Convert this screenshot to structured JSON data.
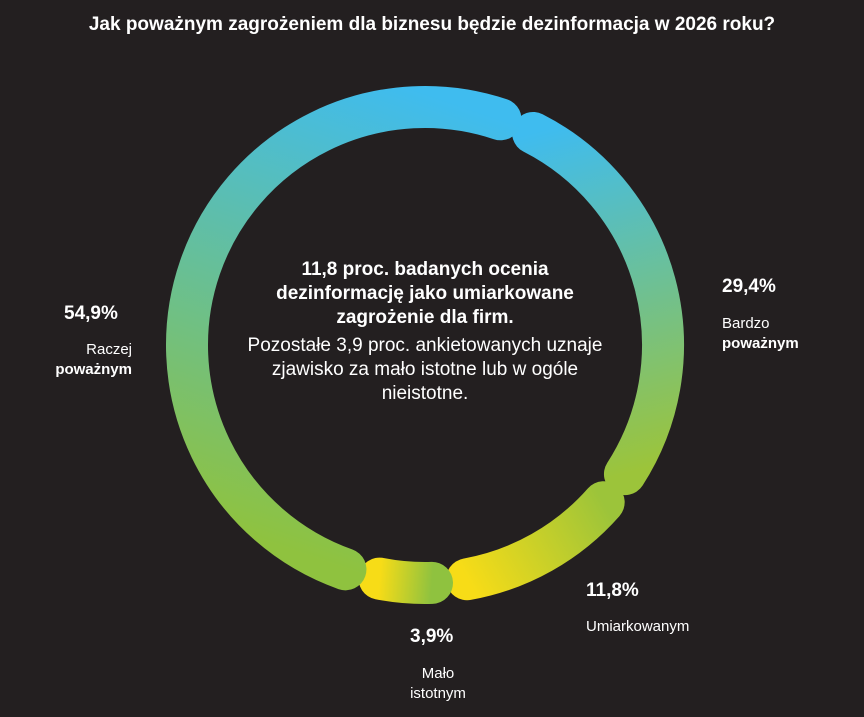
{
  "chart_data": {
    "type": "pie",
    "title": "Jak poważnym zagrożeniem dla biznesu będzie dezinformacja w 2026 roku?",
    "slices": [
      {
        "label_line1": "Bardzo",
        "label_line2": "poważnym",
        "value": 29.4,
        "value_label": "29,4%",
        "colors": [
          "#3fbcef",
          "#9cc43a"
        ]
      },
      {
        "label_line1": "Umiarkowanym",
        "label_line2": "",
        "value": 11.8,
        "value_label": "11,8%",
        "colors": [
          "#9cc43a",
          "#f7dc17"
        ]
      },
      {
        "label_line1": "Mało",
        "label_line2": "istotnym",
        "value": 3.9,
        "value_label": "3,9%",
        "colors": [
          "#8fc23f",
          "#f7dc17"
        ]
      },
      {
        "label_line1": "Raczej",
        "label_line2": "poważnym",
        "value": 54.9,
        "value_label": "54,9%",
        "colors": [
          "#8fc23f",
          "#3fbcef"
        ]
      }
    ],
    "center_text_bold": "11,8 proc. badanych ocenia dezinformację jako umiarkowane zagrożenie dla firm.",
    "center_text": "Pozostałe 3,9 proc. ankietowanych uznaje zjawisko za mało istotne lub w ogóle nieistotne."
  }
}
